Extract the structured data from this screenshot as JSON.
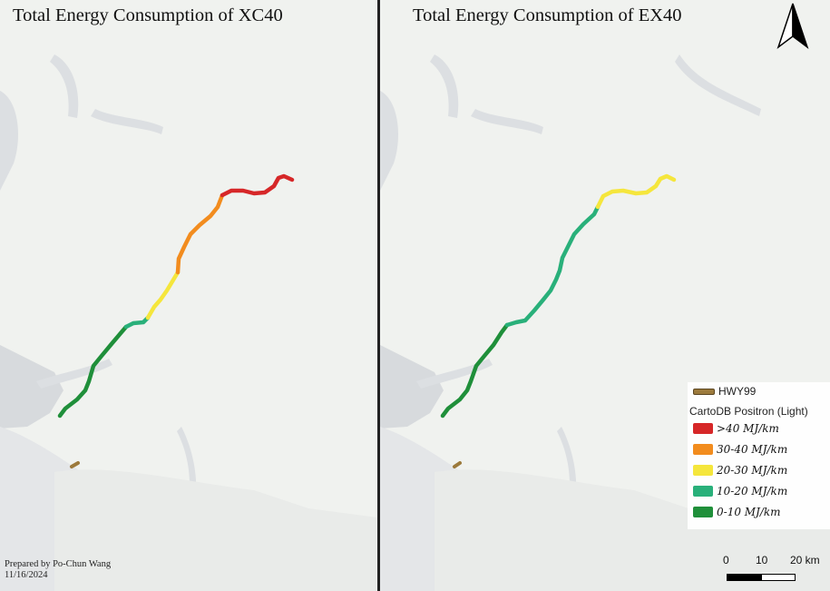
{
  "maps": [
    {
      "title": "Total Energy Consumption of XC40",
      "route_segments": [
        {
          "class": "0-10"
        },
        {
          "class": "10-20"
        },
        {
          "class": "20-30"
        },
        {
          "class": "30-40"
        },
        {
          "class": ">40"
        }
      ]
    },
    {
      "title": "Total Energy Consumption of EX40",
      "route_segments": [
        {
          "class": "0-10"
        },
        {
          "class": "10-20"
        },
        {
          "class": "20-30"
        }
      ]
    }
  ],
  "legend": {
    "line_label": "HWY99",
    "basemap_label": "CartoDB Positron (Light)",
    "classes": [
      {
        "label": ">40 MJ/km",
        "color": "#d62728"
      },
      {
        "label": "30-40 MJ/km",
        "color": "#f28c1e"
      },
      {
        "label": "20-30 MJ/km",
        "color": "#f5e63c"
      },
      {
        "label": "10-20 MJ/km",
        "color": "#29b07a"
      },
      {
        "label": "0-10 MJ/km",
        "color": "#1f8f3a"
      }
    ],
    "hwy_color": "#9c7a3c"
  },
  "credit": {
    "line1": "Prepared by Po-Chun Wang",
    "line2": "11/16/2024"
  },
  "scale_bar": {
    "labels": [
      "0",
      "10",
      "20 km"
    ]
  },
  "north_arrow": {
    "icon": "north-arrow-icon"
  }
}
